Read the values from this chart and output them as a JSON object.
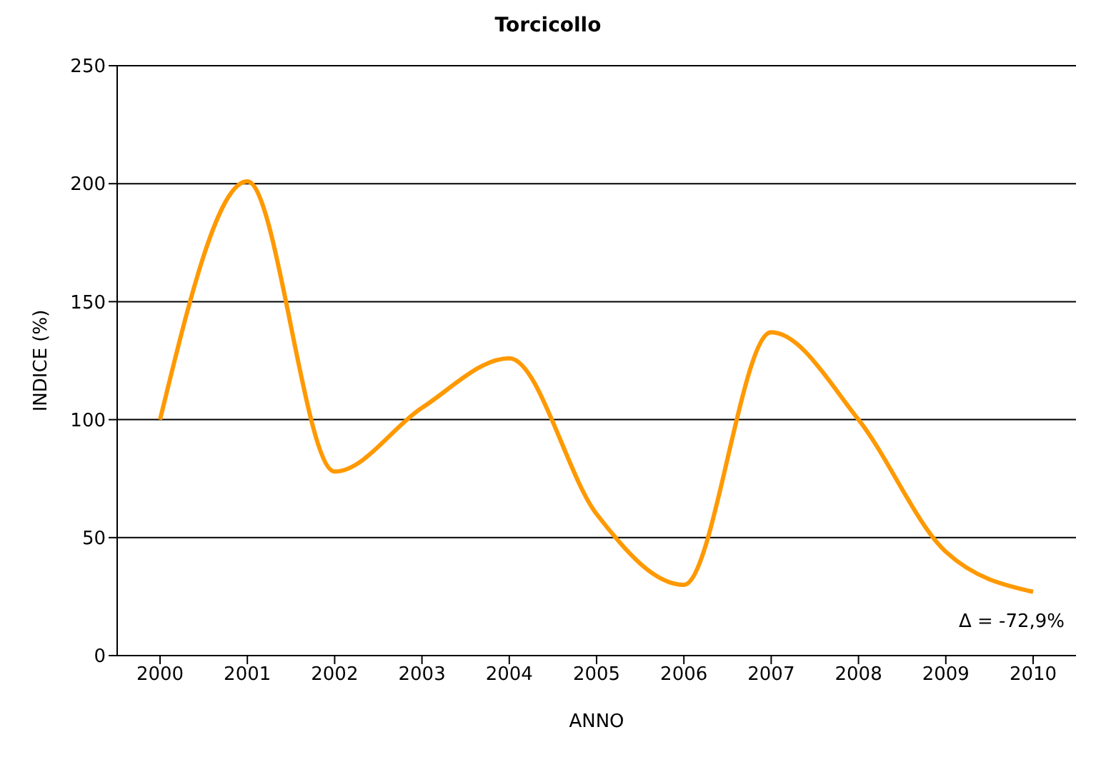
{
  "chart_data": {
    "type": "line",
    "title": "Torcicollo",
    "xlabel": "ANNO",
    "ylabel": "INDICE (%)",
    "categories": [
      "2000",
      "2001",
      "2002",
      "2003",
      "2004",
      "2005",
      "2006",
      "2007",
      "2008",
      "2009",
      "2010"
    ],
    "series": [
      {
        "color": "#ff9900",
        "values": [
          100,
          201,
          78,
          105,
          126,
          60,
          30,
          137,
          100,
          44,
          27
        ]
      }
    ],
    "ylim": [
      0,
      250
    ],
    "yticks": [
      0,
      50,
      100,
      150,
      200,
      250
    ],
    "grid": "y",
    "marker": "none",
    "line_style": "solid",
    "annotations": [
      "Δ = -72,9%"
    ]
  }
}
